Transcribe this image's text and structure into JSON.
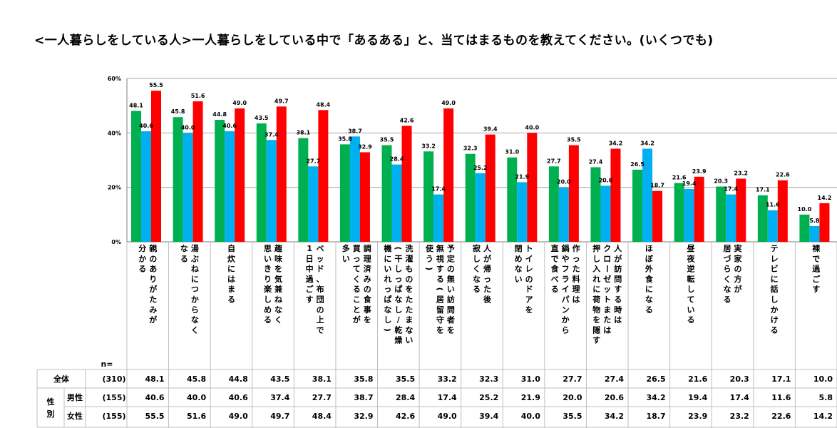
{
  "title": "<一人暮らしをしている人>一人暮らしをしている中で「あるある」と、当てはまるものを教えてください。(いくつでも)",
  "colors": {
    "total": "#00B050",
    "male": "#00B0F0",
    "female": "#FF0000"
  },
  "chart_data": {
    "type": "bar",
    "title": "<一人暮らしをしている人>一人暮らしをしている中で「あるある」と、当てはまるものを教えてください。(いくつでも)",
    "ylim": [
      0,
      60
    ],
    "yticks": [
      "0%",
      "20%",
      "40%",
      "60%"
    ],
    "ytick_values": [
      0,
      20,
      40,
      60
    ],
    "categories": [
      [
        "分かる",
        "親のありがたみが"
      ],
      [
        "なる",
        "湯ぶねにつからなく"
      ],
      [
        "自炊にはまる"
      ],
      [
        "思いきり楽しめる",
        "趣味を気兼ねなく"
      ],
      [
        "1日中過ごす",
        "ベッド、布団の上で"
      ],
      [
        "多い",
        "買ってくることが",
        "調理済みの食事を"
      ],
      [
        "機にいれっぱなし)",
        "(干しっぱなし/乾燥",
        "洗濯ものをたたまない"
      ],
      [
        "使う)",
        "無視する(居留守を",
        "予定の無い訪問者を"
      ],
      [
        "寂しくなる",
        "人が帰った後"
      ],
      [
        "閉めない",
        "トイレのドアを"
      ],
      [
        "直で食べる",
        "鍋やフライパンから",
        "作った料理は"
      ],
      [
        "押し入れに荷物を隠す",
        "クローゼットまたは",
        "人が訪問する時は"
      ],
      [
        "ほぼ外食になる"
      ],
      [
        "昼夜逆転している"
      ],
      [
        "居づらくなる",
        "実家の方が"
      ],
      [
        "テレビに話しかける"
      ],
      [
        "裸で過ごす"
      ]
    ],
    "series": [
      {
        "name": "全体",
        "values": [
          48.1,
          45.8,
          44.8,
          43.5,
          38.1,
          35.8,
          35.5,
          33.2,
          32.3,
          31.0,
          27.7,
          27.4,
          26.5,
          21.6,
          20.3,
          17.1,
          10.0
        ]
      },
      {
        "name": "男性",
        "values": [
          40.6,
          40.0,
          40.6,
          37.4,
          27.7,
          38.7,
          28.4,
          17.4,
          25.2,
          21.9,
          20.0,
          20.6,
          34.2,
          19.4,
          17.4,
          11.6,
          5.8
        ]
      },
      {
        "name": "女性",
        "values": [
          55.5,
          51.6,
          49.0,
          49.7,
          48.4,
          32.9,
          42.6,
          49.0,
          39.4,
          40.0,
          35.5,
          34.2,
          18.7,
          23.9,
          23.2,
          22.6,
          14.2
        ]
      }
    ]
  },
  "table": {
    "n_label": "n=",
    "gender_label": [
      "性",
      "別"
    ],
    "rows": [
      {
        "label": "全体",
        "n": "(310)",
        "values": [
          "48.1",
          "45.8",
          "44.8",
          "43.5",
          "38.1",
          "35.8",
          "35.5",
          "33.2",
          "32.3",
          "31.0",
          "27.7",
          "27.4",
          "26.5",
          "21.6",
          "20.3",
          "17.1",
          "10.0"
        ]
      },
      {
        "label": "男性",
        "n": "(155)",
        "values": [
          "40.6",
          "40.0",
          "40.6",
          "37.4",
          "27.7",
          "38.7",
          "28.4",
          "17.4",
          "25.2",
          "21.9",
          "20.0",
          "20.6",
          "34.2",
          "19.4",
          "17.4",
          "11.6",
          "5.8"
        ]
      },
      {
        "label": "女性",
        "n": "(155)",
        "values": [
          "55.5",
          "51.6",
          "49.0",
          "49.7",
          "48.4",
          "32.9",
          "42.6",
          "49.0",
          "39.4",
          "40.0",
          "35.5",
          "34.2",
          "18.7",
          "23.9",
          "23.2",
          "22.6",
          "14.2"
        ]
      }
    ]
  }
}
